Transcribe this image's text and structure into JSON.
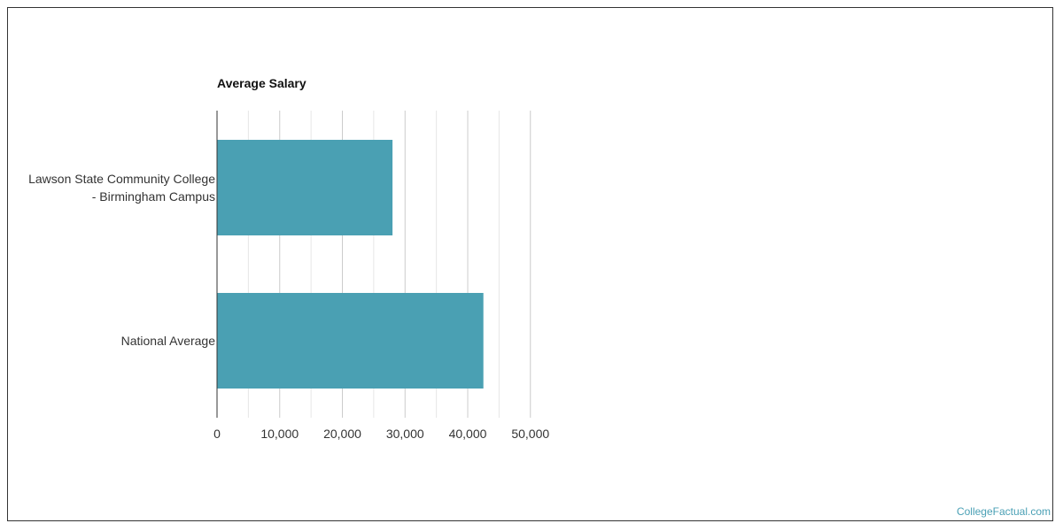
{
  "chart_data": {
    "type": "bar",
    "orientation": "horizontal",
    "title": "Average Salary",
    "xlabel": "",
    "ylabel": "",
    "categories": [
      [
        "Lawson State Community College",
        "- Birmingham Campus"
      ],
      [
        "National Average"
      ]
    ],
    "values": [
      28000,
      42500
    ],
    "xlim": [
      0,
      50000
    ],
    "ticks": [
      0,
      10000,
      20000,
      30000,
      40000,
      50000
    ],
    "tick_labels": [
      "0",
      "10,000",
      "20,000",
      "30,000",
      "40,000",
      "50,000"
    ],
    "bar_color": "#4aa0b3",
    "grid": true
  },
  "credit": "CollegeFactual.com"
}
